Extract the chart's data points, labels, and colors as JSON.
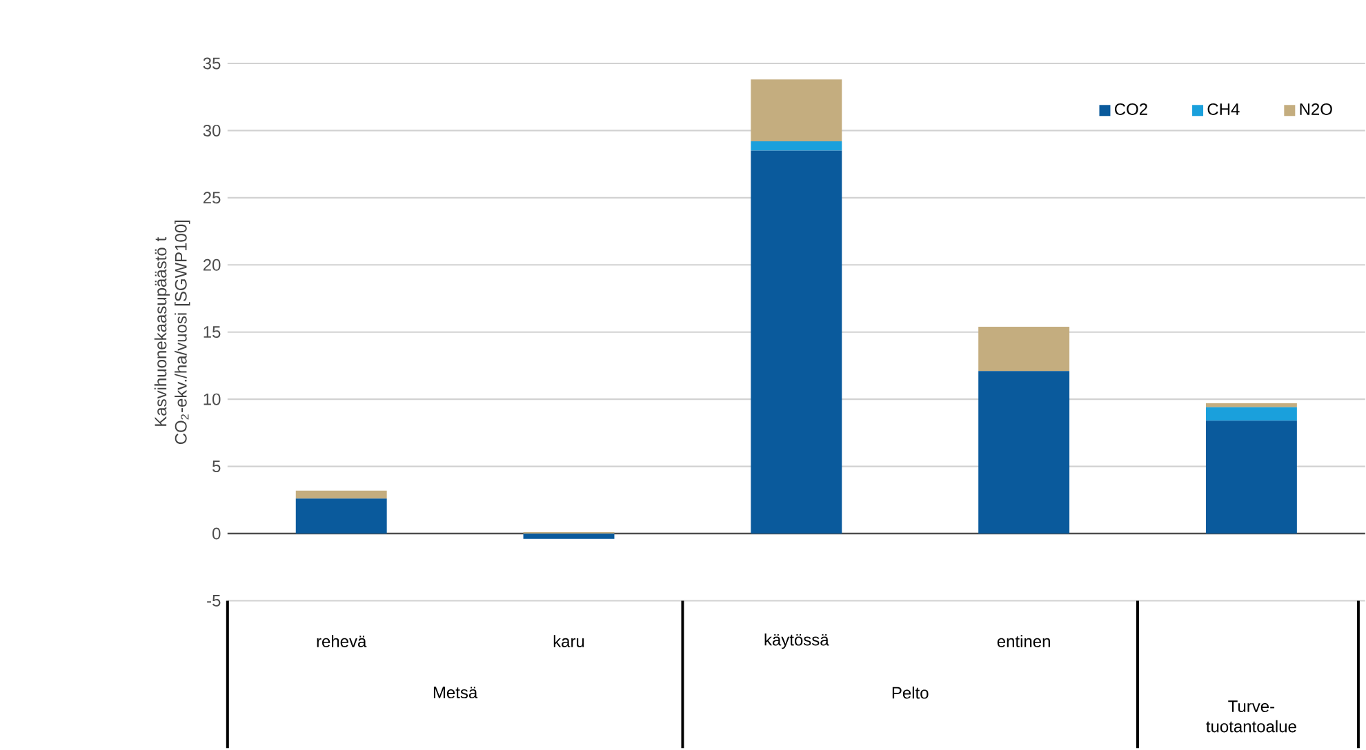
{
  "chart_data": {
    "type": "bar",
    "stacked": true,
    "ylabel": "Kasvihuonekaasupäästö t CO$_{2}$-ekv./ha/vuosi [SGWP100]",
    "categories": [
      "rehevä",
      "karu",
      "käytössä",
      "entinen",
      null
    ],
    "series": [
      {
        "name": "CO2",
        "color": "#0a5a9c",
        "values": [
          2.6,
          -0.4,
          28.5,
          12.1,
          8.4
        ]
      },
      {
        "name": "CH4",
        "color": "#1aa0dc",
        "values": [
          0,
          0,
          0.7,
          0,
          1.0
        ]
      },
      {
        "name": "N2O",
        "color": "#c4ad7f",
        "values": [
          0.6,
          0.1,
          4.6,
          3.3,
          0.3
        ]
      }
    ],
    "ylim": [
      -5,
      35
    ],
    "yticks": [
      -5,
      0,
      5,
      10,
      15,
      20,
      25,
      30,
      35
    ],
    "grid": "y",
    "legend": "top right",
    "annotations": [
      "Metsä",
      "Pelto",
      "Turve-tuotantoalue"
    ]
  }
}
